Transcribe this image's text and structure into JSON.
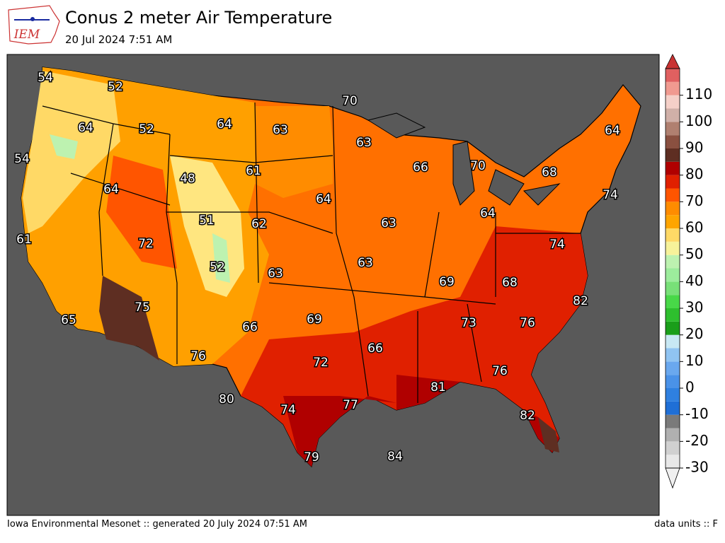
{
  "header": {
    "logo": "IEM",
    "title": "Conus 2 meter Air Temperature",
    "subtitle": "20 Jul 2024 7:51 AM"
  },
  "map_labels": [
    54,
    52,
    70,
    64,
    52,
    64,
    63,
    63,
    64,
    54,
    66,
    70,
    61,
    68,
    48,
    64,
    64,
    74,
    51,
    62,
    63,
    64,
    61,
    72,
    74,
    52,
    63,
    63,
    69,
    68,
    82,
    75,
    69,
    73,
    76,
    65,
    66,
    66,
    76,
    72,
    76,
    81,
    80,
    74,
    77,
    82,
    79,
    84
  ],
  "colorbar": {
    "range": [
      -30,
      120
    ],
    "ticks": [
      -30,
      -20,
      -10,
      0,
      10,
      20,
      30,
      40,
      50,
      60,
      70,
      80,
      90,
      100,
      110
    ],
    "colors": [
      "#e8e8e8",
      "#d0d0d0",
      "#b0b0b0",
      "#7a7a7a",
      "#1f6fd6",
      "#2f80e0",
      "#4a92e8",
      "#6aa8ee",
      "#90c4f2",
      "#c8e8f4",
      "#1a9e1a",
      "#2ebf2e",
      "#48d848",
      "#78e078",
      "#9cec9c",
      "#bdf2b0",
      "#f7f29a",
      "#ffd966",
      "#ffa500",
      "#ff8c00",
      "#ff5500",
      "#e02000",
      "#b00000",
      "#5e2e22",
      "#8a5040",
      "#b08070",
      "#d0b0a8",
      "#f5d0c8",
      "#f09a90",
      "#e06060"
    ],
    "over_color": "#c83232",
    "under_color": "#f0f0f0"
  },
  "footer": {
    "left": "Iowa Environmental Mesonet :: generated 20 July 2024 07:51 AM",
    "right": "data units :: F"
  }
}
